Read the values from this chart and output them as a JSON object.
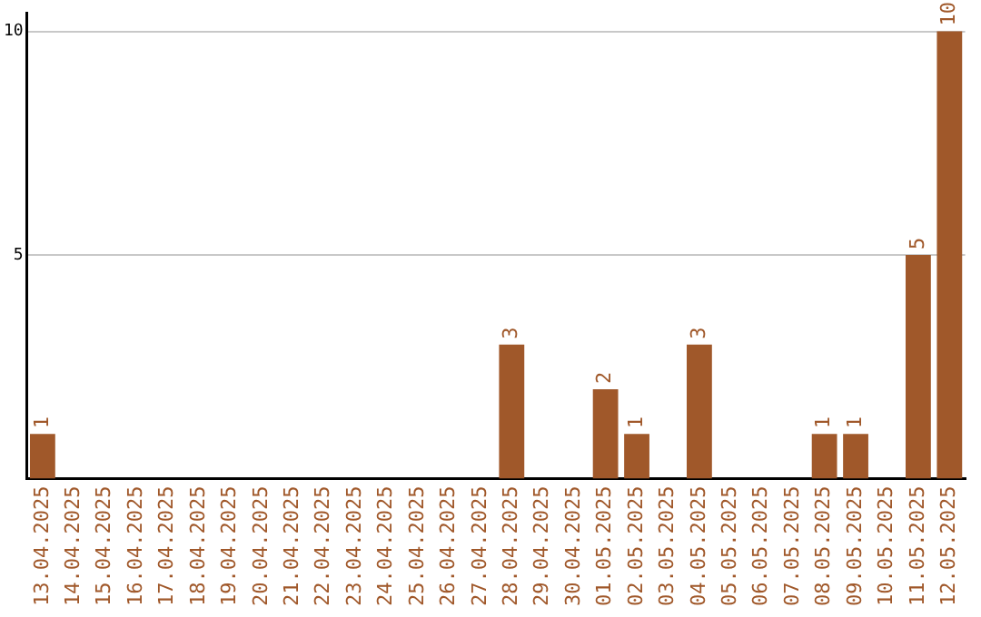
{
  "chart_data": {
    "type": "bar",
    "categories": [
      "13.04.2025",
      "14.04.2025",
      "15.04.2025",
      "16.04.2025",
      "17.04.2025",
      "18.04.2025",
      "19.04.2025",
      "20.04.2025",
      "21.04.2025",
      "22.04.2025",
      "23.04.2025",
      "24.04.2025",
      "25.04.2025",
      "26.04.2025",
      "27.04.2025",
      "28.04.2025",
      "29.04.2025",
      "30.04.2025",
      "01.05.2025",
      "02.05.2025",
      "03.05.2025",
      "04.05.2025",
      "05.05.2025",
      "06.05.2025",
      "07.05.2025",
      "08.05.2025",
      "09.05.2025",
      "10.05.2025",
      "11.05.2025",
      "12.05.2025"
    ],
    "values": [
      1,
      0,
      0,
      0,
      0,
      0,
      0,
      0,
      0,
      0,
      0,
      0,
      0,
      0,
      0,
      3,
      0,
      0,
      2,
      1,
      0,
      3,
      0,
      0,
      0,
      1,
      1,
      0,
      5,
      10
    ],
    "value_labels": [
      "1",
      null,
      null,
      null,
      null,
      null,
      null,
      null,
      null,
      null,
      null,
      null,
      null,
      null,
      null,
      "3",
      null,
      null,
      "2",
      "1",
      null,
      "3",
      null,
      null,
      null,
      "1",
      "1",
      null,
      "5",
      "10"
    ],
    "color": "#a0582a",
    "ylim": [
      0,
      10.4
    ],
    "yticks": [
      5,
      10
    ],
    "grid": "y",
    "legend": false
  }
}
